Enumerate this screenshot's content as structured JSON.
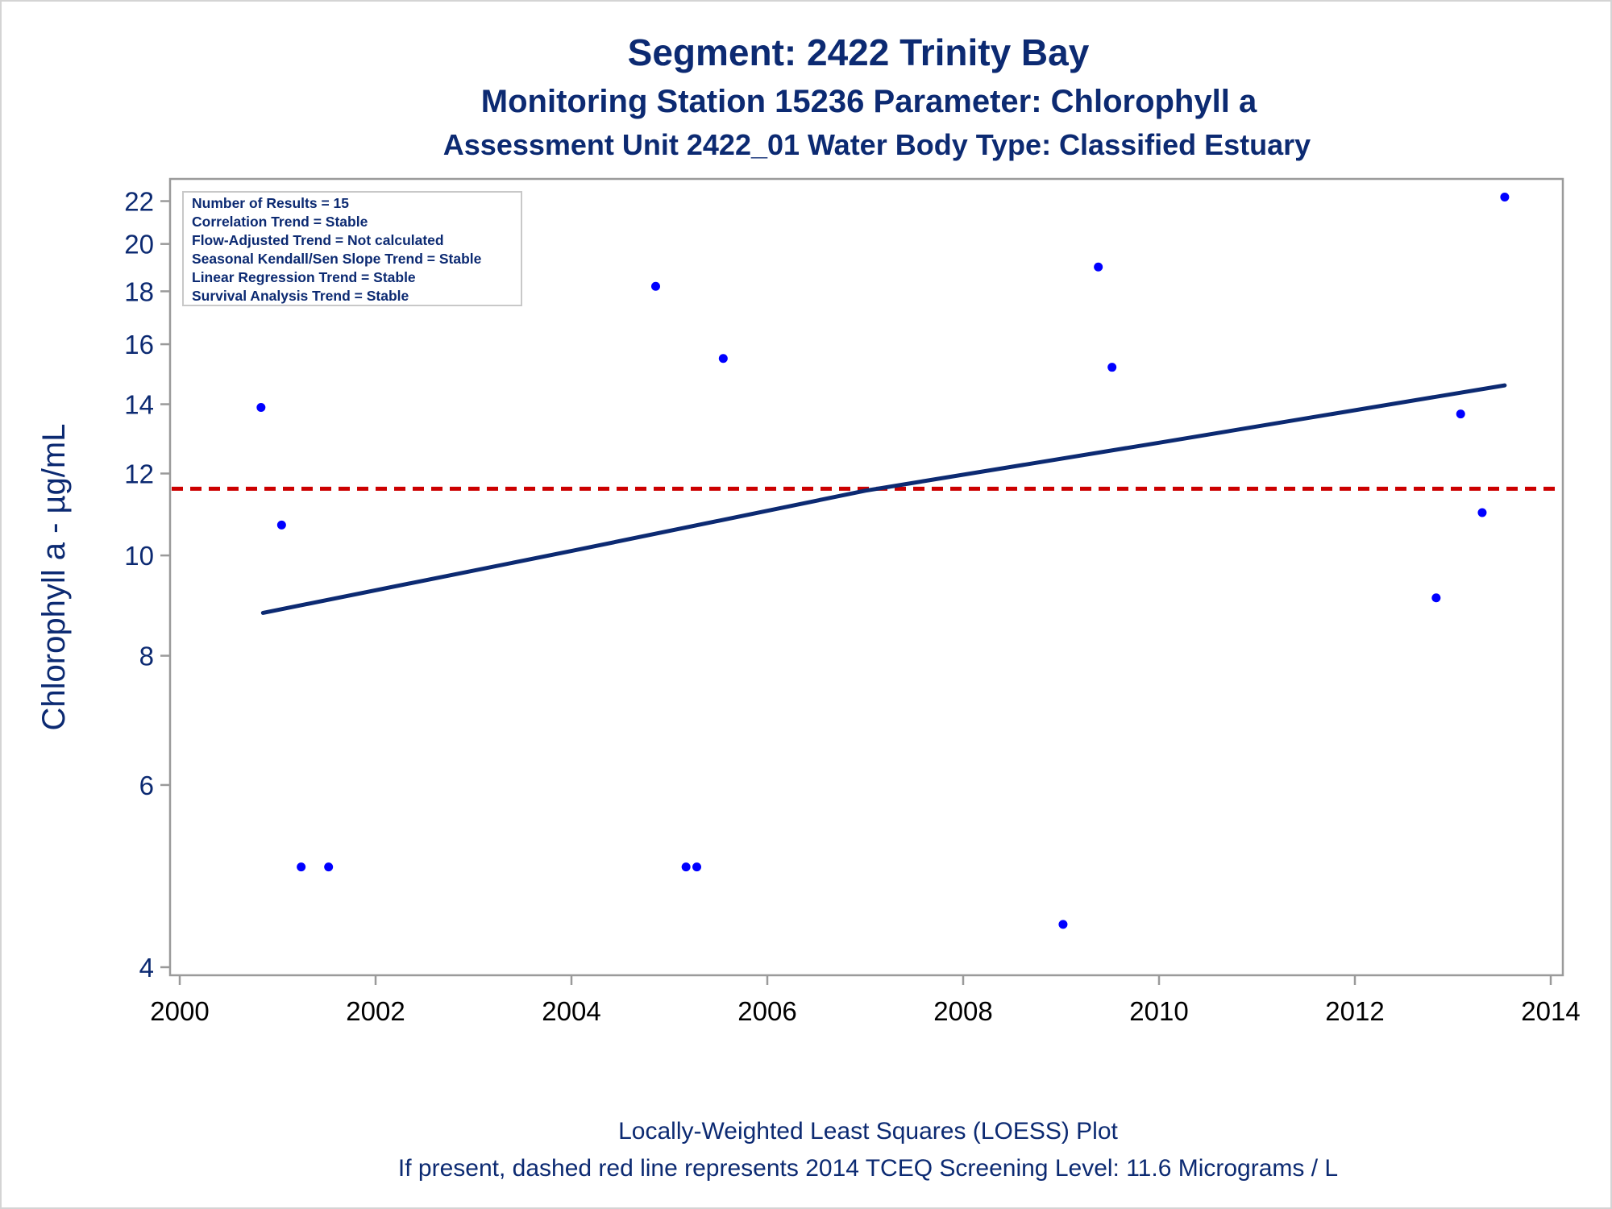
{
  "titles": {
    "line1": "Segment: 2422  Trinity Bay",
    "line2": "Monitoring Station 15236 Parameter: Chlorophyll a",
    "line3": "Assessment Unit 2422_01   Water Body Type: Classified Estuary"
  },
  "footnotes": {
    "line1": "Locally-Weighted Least Squares (LOESS) Plot",
    "line2": "If present, dashed red line represents 2014 TCEQ Screening Level: 11.6 Micrograms / L"
  },
  "stats_box": [
    "Number of Results = 15",
    "Correlation Trend = Stable",
    "Flow-Adjusted Trend = Not calculated",
    "Seasonal Kendall/Sen Slope Trend = Stable",
    "Linear Regression Trend = Stable",
    "Survival Analysis Trend = Stable"
  ],
  "colors": {
    "points": "#0000ff",
    "trend_line": "#0c2a72",
    "screening_line": "#cc0000",
    "axis": "#9a9a9a"
  },
  "chart_data": {
    "type": "scatter",
    "xlabel": "",
    "ylabel": "Chlorophyll a -  µg/mL",
    "xlim": [
      2000,
      2014
    ],
    "ylim": [
      4,
      22.5
    ],
    "y_scale": "log",
    "x_ticks": [
      2000,
      2002,
      2004,
      2006,
      2008,
      2010,
      2012,
      2014
    ],
    "y_ticks": [
      4,
      6,
      8,
      10,
      12,
      14,
      16,
      18,
      20,
      22
    ],
    "grid": false,
    "points": [
      {
        "x": 2000.83,
        "y": 13.9
      },
      {
        "x": 2001.04,
        "y": 10.7
      },
      {
        "x": 2001.24,
        "y": 5.0
      },
      {
        "x": 2001.52,
        "y": 5.0
      },
      {
        "x": 2004.86,
        "y": 18.2
      },
      {
        "x": 2005.17,
        "y": 5.0
      },
      {
        "x": 2005.28,
        "y": 5.0
      },
      {
        "x": 2005.55,
        "y": 15.5
      },
      {
        "x": 2009.02,
        "y": 4.4
      },
      {
        "x": 2009.38,
        "y": 19.0
      },
      {
        "x": 2009.52,
        "y": 15.2
      },
      {
        "x": 2012.83,
        "y": 9.1
      },
      {
        "x": 2013.08,
        "y": 13.7
      },
      {
        "x": 2013.3,
        "y": 11.0
      },
      {
        "x": 2013.53,
        "y": 22.2
      }
    ],
    "trend_line": [
      {
        "x": 2000.85,
        "y": 8.8
      },
      {
        "x": 2004.0,
        "y": 10.1
      },
      {
        "x": 2007.0,
        "y": 11.55
      },
      {
        "x": 2010.0,
        "y": 12.85
      },
      {
        "x": 2013.53,
        "y": 14.6
      }
    ],
    "screening_level": 11.6
  }
}
